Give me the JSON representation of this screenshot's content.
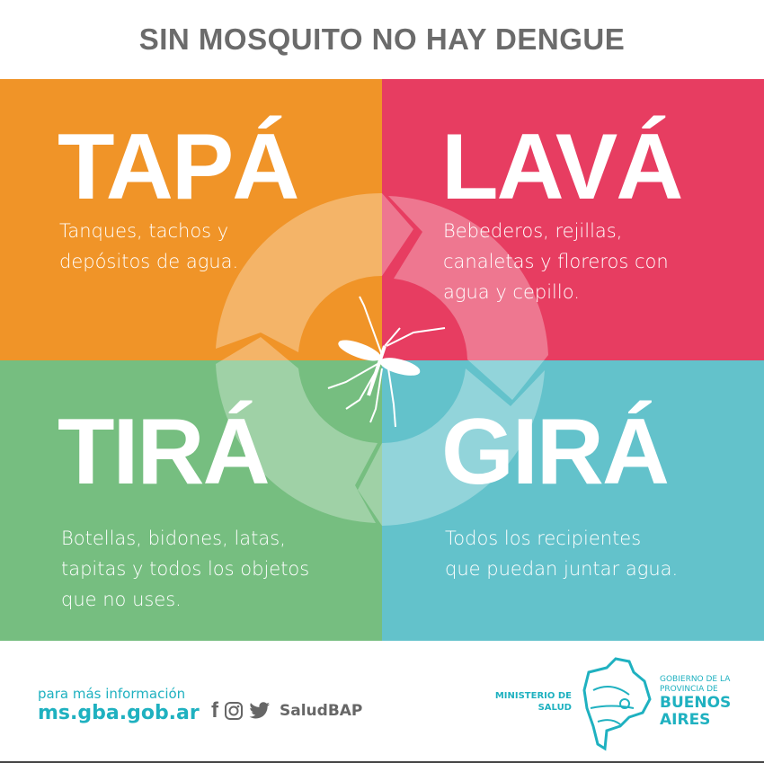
{
  "title": "SIN MOSQUITO NO HAY DENGUE",
  "colors": {
    "orange": "#f09428",
    "pink": "#e73d61",
    "green": "#76be80",
    "teal": "#63c2cb",
    "title_gray": "#6b6b6b",
    "brand_teal": "#1fb1c0"
  },
  "quadrants": [
    {
      "word": "TAPÁ",
      "lines": [
        "Tanques, tachos y",
        "depósitos de agua."
      ]
    },
    {
      "word": "LAVÁ",
      "lines": [
        "Bebederos, rejillas,",
        "canaletas y floreros con",
        "agua y cepillo."
      ]
    },
    {
      "word": "TIRÁ",
      "lines": [
        "Botellas, bidones, latas,",
        "tapitas y todos los objetos",
        "que no uses."
      ]
    },
    {
      "word": "GIRÁ",
      "lines": [
        "Todos los recipientes",
        "que puedan juntar agua."
      ]
    }
  ],
  "center_icon": "mosquito-icon",
  "footer": {
    "info_label": "para más información",
    "website": "ms.gba.gob.ar",
    "social_icons": [
      "facebook-icon",
      "instagram-icon",
      "twitter-icon"
    ],
    "handle": "SaludBAP",
    "ministry": [
      "MINISTERIO DE",
      "SALUD"
    ],
    "government": {
      "line1": "GOBIERNO DE LA",
      "line2": "PROVINCIA DE",
      "line3": "BUENOS",
      "line4": "AIRES"
    }
  }
}
